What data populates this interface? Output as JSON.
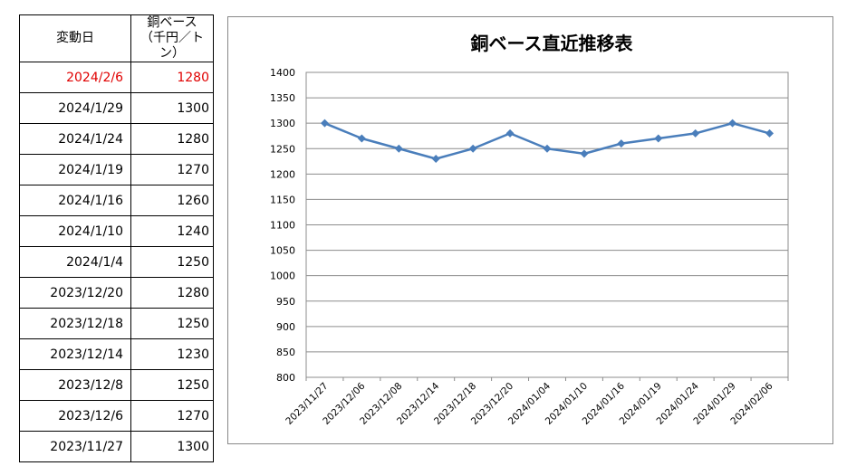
{
  "table": {
    "header_date": "変動日",
    "header_value_line1": "銅ベース",
    "header_value_line2": "（千円／トン）",
    "rows": [
      {
        "date": "2024/2/6",
        "value": "1280",
        "highlight": true
      },
      {
        "date": "2024/1/29",
        "value": "1300"
      },
      {
        "date": "2024/1/24",
        "value": "1280"
      },
      {
        "date": "2024/1/19",
        "value": "1270"
      },
      {
        "date": "2024/1/16",
        "value": "1260"
      },
      {
        "date": "2024/1/10",
        "value": "1240"
      },
      {
        "date": "2024/1/4",
        "value": "1250"
      },
      {
        "date": "2023/12/20",
        "value": "1280"
      },
      {
        "date": "2023/12/18",
        "value": "1250"
      },
      {
        "date": "2023/12/14",
        "value": "1230"
      },
      {
        "date": "2023/12/8",
        "value": "1250"
      },
      {
        "date": "2023/12/6",
        "value": "1270"
      },
      {
        "date": "2023/11/27",
        "value": "1300"
      }
    ],
    "highlight_color": "#e00000"
  },
  "chart_data": {
    "type": "line",
    "title": "銅ベース直近推移表",
    "xlabel": "",
    "ylabel": "",
    "categories": [
      "2023/11/27",
      "2023/12/06",
      "2023/12/08",
      "2023/12/14",
      "2023/12/18",
      "2023/12/20",
      "2024/01/04",
      "2024/01/10",
      "2024/01/16",
      "2024/01/19",
      "2024/01/24",
      "2024/01/29",
      "2024/02/06"
    ],
    "series": [
      {
        "values": [
          1300,
          1270,
          1250,
          1230,
          1250,
          1280,
          1250,
          1240,
          1260,
          1270,
          1280,
          1300,
          1280
        ],
        "color": "#4a7ebb",
        "marker": "diamond"
      }
    ],
    "ylim": [
      800,
      1400
    ],
    "yticks": [
      800,
      850,
      900,
      950,
      1000,
      1050,
      1100,
      1150,
      1200,
      1250,
      1300,
      1350,
      1400
    ],
    "grid": true,
    "legend": "none"
  }
}
